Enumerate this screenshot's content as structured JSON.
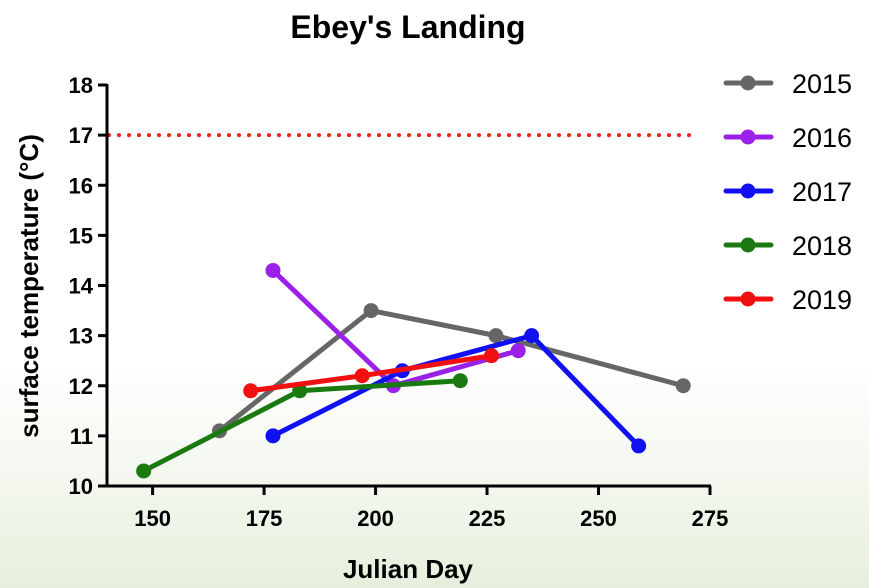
{
  "chart_data": {
    "type": "line",
    "title": "Ebey's Landing",
    "xlabel": "Julian Day",
    "ylabel": "surface temperature (°C)",
    "xlim": [
      140,
      275
    ],
    "ylim": [
      10,
      18
    ],
    "xticks": [
      150,
      175,
      200,
      225,
      250,
      275
    ],
    "yticks": [
      10,
      11,
      12,
      13,
      14,
      15,
      16,
      17,
      18
    ],
    "grid": false,
    "legend_position": "right",
    "reference_line": {
      "y": 17,
      "color": "#e8201c",
      "style": "dotted"
    },
    "series": [
      {
        "name": "2015",
        "color": "#666666",
        "x": [
          165,
          199,
          227,
          269
        ],
        "y": [
          11.1,
          13.5,
          13.0,
          12.0
        ]
      },
      {
        "name": "2016",
        "color": "#9b20e8",
        "x": [
          177,
          204,
          232
        ],
        "y": [
          14.3,
          12.0,
          12.7
        ]
      },
      {
        "name": "2017",
        "color": "#1010f0",
        "x": [
          177,
          206,
          235,
          259
        ],
        "y": [
          11.0,
          12.3,
          13.0,
          10.8
        ]
      },
      {
        "name": "2018",
        "color": "#1a7a10",
        "x": [
          148,
          183,
          219
        ],
        "y": [
          10.3,
          11.9,
          12.1
        ]
      },
      {
        "name": "2019",
        "color": "#f01010",
        "x": [
          172,
          197,
          226
        ],
        "y": [
          11.9,
          12.2,
          12.6
        ]
      }
    ]
  }
}
